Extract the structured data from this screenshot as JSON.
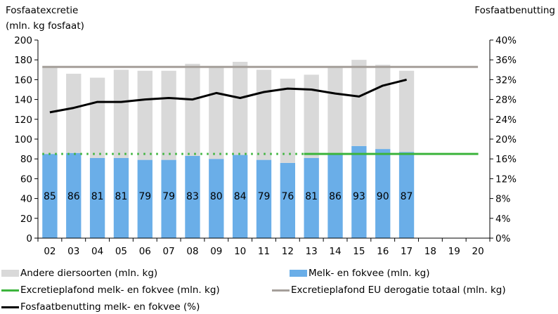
{
  "chart_data": {
    "type": "bar",
    "left_axis_title_lines": [
      "Fosfaatexcretie",
      "(mln. kg fosfaat)"
    ],
    "right_axis_title": "Fosfaatbenutting",
    "categories": [
      "02",
      "03",
      "04",
      "05",
      "06",
      "07",
      "08",
      "09",
      "10",
      "11",
      "12",
      "13",
      "14",
      "15",
      "16",
      "17",
      "18",
      "19",
      "20"
    ],
    "left_ylim": [
      0,
      200
    ],
    "left_ticks": [
      0,
      20,
      40,
      60,
      80,
      100,
      120,
      140,
      160,
      180,
      200
    ],
    "right_ylim": [
      0,
      40
    ],
    "right_ticks": [
      "0%",
      "4%",
      "8%",
      "12%",
      "16%",
      "20%",
      "24%",
      "28%",
      "32%",
      "36%",
      "40%"
    ],
    "stacked": true,
    "series": [
      {
        "name": "Melk- en fokvee (mln. kg)",
        "type": "bar",
        "axis": "left",
        "color": "#6aaee8",
        "values": [
          85,
          86,
          81,
          81,
          79,
          79,
          83,
          80,
          84,
          79,
          76,
          81,
          86,
          93,
          90,
          87,
          null,
          null,
          null
        ],
        "data_labels": [
          "85",
          "86",
          "81",
          "81",
          "79",
          "79",
          "83",
          "80",
          "84",
          "79",
          "76",
          "81",
          "86",
          "93",
          "90",
          "87",
          "",
          "",
          ""
        ]
      },
      {
        "name": "Andere diersoorten (mln. kg)",
        "type": "bar",
        "axis": "left",
        "color": "#d9d9d9",
        "values": [
          88,
          80,
          81,
          89,
          90,
          90,
          93,
          93,
          94,
          91,
          85,
          84,
          86,
          87,
          85,
          82,
          null,
          null,
          null
        ]
      },
      {
        "name": "Excretieplafond melk- en fokvee (mln. kg)",
        "type": "line",
        "axis": "left",
        "color": "#3cb43c",
        "value": 85,
        "dotted_x_range": [
          "02",
          "13"
        ],
        "solid_x_range": [
          "13",
          "20"
        ]
      },
      {
        "name": "Excretieplafond EU derogatie totaal (mln. kg)",
        "type": "line",
        "axis": "left",
        "color": "#a59f9a",
        "value": 172.9,
        "x_range": [
          "02",
          "20"
        ]
      },
      {
        "name": "Fosfaatbenutting melk- en fokvee (%)",
        "type": "line",
        "axis": "right",
        "color": "#000000",
        "values": [
          25.4,
          26.3,
          27.5,
          27.5,
          28.0,
          28.3,
          28.0,
          29.3,
          28.3,
          29.5,
          30.2,
          30.0,
          29.2,
          28.6,
          30.8,
          32.0,
          null,
          null,
          null
        ]
      }
    ],
    "legend": {
      "placement": "bottom",
      "items": [
        {
          "label": "Andere diersoorten (mln. kg)",
          "kind": "box",
          "color": "#d9d9d9"
        },
        {
          "label": "Melk- en fokvee (mln. kg)",
          "kind": "box",
          "color": "#6aaee8"
        },
        {
          "label": "Excretieplafond melk- en fokvee (mln. kg)",
          "kind": "line",
          "color": "#3cb43c"
        },
        {
          "label": "Excretieplafond EU derogatie totaal (mln. kg)",
          "kind": "line",
          "color": "#a59f9a"
        },
        {
          "label": "Fosfaatbenutting melk- en fokvee (%)",
          "kind": "line",
          "color": "#000000"
        }
      ]
    },
    "grid": false
  }
}
